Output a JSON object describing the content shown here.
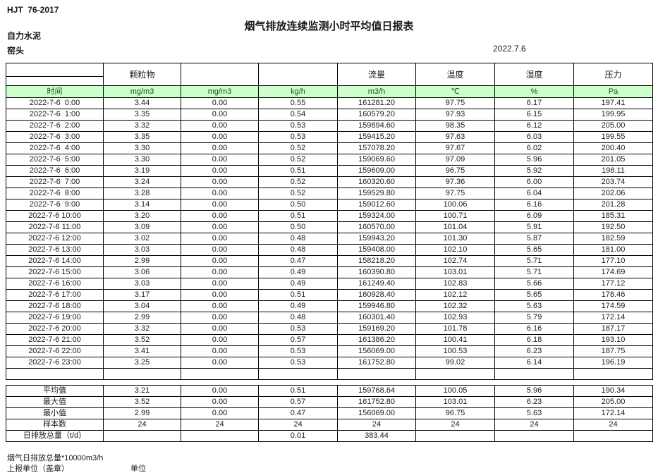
{
  "header": {
    "standard": "HJT  76-2017",
    "title": "烟气排放连续监测小时平均值日报表",
    "company": "自力水泥",
    "station": "窑头",
    "date": "2022.7.6"
  },
  "table": {
    "group_headers": [
      "",
      "颗粒物",
      "",
      "",
      "流量",
      "温度",
      "湿度",
      "压力"
    ],
    "unit_row": [
      "时间",
      "mg/m3",
      "mg/m3",
      "kg/h",
      "m3/h",
      "℃",
      "%",
      "Pa"
    ],
    "rows": [
      [
        "2022-7-6  0:00",
        "3.44",
        "0.00",
        "0.55",
        "161281.20",
        "97.75",
        "6.17",
        "197.41"
      ],
      [
        "2022-7-6  1:00",
        "3.35",
        "0.00",
        "0.54",
        "160579.20",
        "97.93",
        "6.15",
        "199.95"
      ],
      [
        "2022-7-6  2:00",
        "3.32",
        "0.00",
        "0.53",
        "159894.60",
        "98.35",
        "6.12",
        "205.00"
      ],
      [
        "2022-7-6  3:00",
        "3.35",
        "0.00",
        "0.53",
        "159415.20",
        "97.63",
        "6.03",
        "199.55"
      ],
      [
        "2022-7-6  4:00",
        "3.30",
        "0.00",
        "0.52",
        "157078.20",
        "97.67",
        "6.02",
        "200.40"
      ],
      [
        "2022-7-6  5:00",
        "3.30",
        "0.00",
        "0.52",
        "159069.60",
        "97.09",
        "5.96",
        "201.05"
      ],
      [
        "2022-7-6  6:00",
        "3.19",
        "0.00",
        "0.51",
        "159609.00",
        "96.75",
        "5.92",
        "198.11"
      ],
      [
        "2022-7-6  7:00",
        "3.24",
        "0.00",
        "0.52",
        "160320.60",
        "97.36",
        "6.00",
        "203.74"
      ],
      [
        "2022-7-6  8:00",
        "3.28",
        "0.00",
        "0.52",
        "159529.80",
        "97.75",
        "6.04",
        "202.06"
      ],
      [
        "2022-7-6  9:00",
        "3.14",
        "0.00",
        "0.50",
        "159012.60",
        "100.06",
        "6.16",
        "201.28"
      ],
      [
        "2022-7-6 10:00",
        "3.20",
        "0.00",
        "0.51",
        "159324.00",
        "100.71",
        "6.09",
        "185.31"
      ],
      [
        "2022-7-6 11:00",
        "3.09",
        "0.00",
        "0.50",
        "160570.00",
        "101.04",
        "5.91",
        "192.50"
      ],
      [
        "2022-7-6 12:00",
        "3.02",
        "0.00",
        "0.48",
        "159943.20",
        "101.30",
        "5.87",
        "182.59"
      ],
      [
        "2022-7-6 13:00",
        "3.03",
        "0.00",
        "0.48",
        "159408.00",
        "102.10",
        "5.65",
        "181.00"
      ],
      [
        "2022-7-6 14:00",
        "2.99",
        "0.00",
        "0.47",
        "158218.20",
        "102.74",
        "5.71",
        "177.10"
      ],
      [
        "2022-7-6 15:00",
        "3.06",
        "0.00",
        "0.49",
        "160390.80",
        "103.01",
        "5.71",
        "174.69"
      ],
      [
        "2022-7-6 16:00",
        "3.03",
        "0.00",
        "0.49",
        "161249.40",
        "102.83",
        "5.66",
        "177.12"
      ],
      [
        "2022-7-6 17:00",
        "3.17",
        "0.00",
        "0.51",
        "160928.40",
        "102.12",
        "5.65",
        "178.46"
      ],
      [
        "2022-7-6 18:00",
        "3.04",
        "0.00",
        "0.49",
        "159946.80",
        "102.32",
        "5.63",
        "174.59"
      ],
      [
        "2022-7-6 19:00",
        "2.99",
        "0.00",
        "0.48",
        "160301.40",
        "102.93",
        "5.79",
        "172.14"
      ],
      [
        "2022-7-6 20:00",
        "3.32",
        "0.00",
        "0.53",
        "159169.20",
        "101.78",
        "6.16",
        "187.17"
      ],
      [
        "2022-7-6 21:00",
        "3.52",
        "0.00",
        "0.57",
        "161386.20",
        "100.41",
        "6.18",
        "193.10"
      ],
      [
        "2022-7-6 22:00",
        "3.41",
        "0.00",
        "0.53",
        "156069.00",
        "100.53",
        "6.23",
        "187.75"
      ],
      [
        "2022-7-6 23:00",
        "3.25",
        "0.00",
        "0.53",
        "161752.80",
        "99.02",
        "6.14",
        "196.19"
      ]
    ],
    "summary_rows": [
      [
        "平均值",
        "3.21",
        "0.00",
        "0.51",
        "159768.64",
        "100.05",
        "5.96",
        "190.34"
      ],
      [
        "最大值",
        "3.52",
        "0.00",
        "0.57",
        "161752.80",
        "103.01",
        "6.23",
        "205.00"
      ],
      [
        "最小值",
        "2.99",
        "0.00",
        "0.47",
        "156069.00",
        "96.75",
        "5.63",
        "172.14"
      ],
      [
        "样本数",
        "24",
        "24",
        "24",
        "24",
        "24",
        "24",
        "24"
      ],
      [
        "日排放总量（t/d）",
        "",
        "",
        "0.01",
        "383.44",
        "",
        "",
        ""
      ]
    ]
  },
  "footer": {
    "note": "烟气日排放总量*10000m3/h",
    "report_unit": "上报单位（盖章）",
    "unit_label": "单位"
  },
  "colors": {
    "unit_row_bg": "#ccffcc",
    "unit_row_text": "#1a4d1a",
    "border": "#000000",
    "text": "#1a1a1a"
  }
}
